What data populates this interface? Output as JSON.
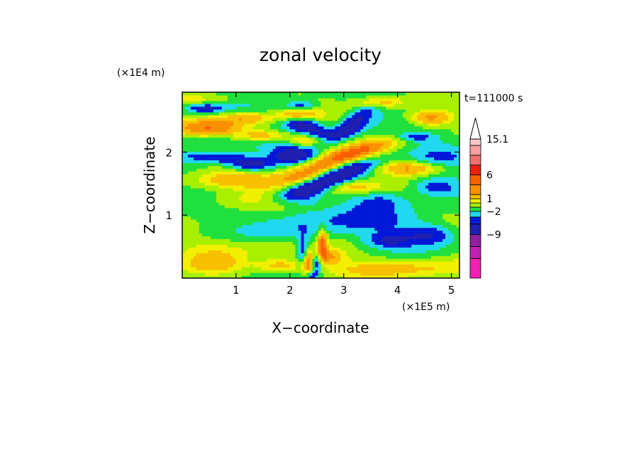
{
  "chart_data": {
    "type": "heatmap",
    "title": "zonal velocity",
    "xlabel": "X−coordinate",
    "ylabel": "Z−coordinate",
    "x_scale_label": "(×1E5 m)",
    "y_scale_label": "(×1E4 m)",
    "time_label": "t=111000 s",
    "xlim": [
      0,
      5.15
    ],
    "ylim": [
      0,
      2.95
    ],
    "x_ticks": [
      {
        "value": 1,
        "label": "1"
      },
      {
        "value": 2,
        "label": "2"
      },
      {
        "value": 3,
        "label": "3"
      },
      {
        "value": 4,
        "label": "4"
      },
      {
        "value": 5,
        "label": "5"
      }
    ],
    "y_ticks": [
      {
        "value": 1,
        "label": "1"
      },
      {
        "value": 2,
        "label": "2"
      }
    ],
    "colorbar": {
      "max_value": 15.1,
      "levels": [
        {
          "label": "",
          "color": "#f020b0"
        },
        {
          "label": "",
          "color": "#c020b0"
        },
        {
          "label": "−9",
          "color": "#9020a0"
        },
        {
          "label": "",
          "color": "#2020b0"
        },
        {
          "label": "",
          "color": "#0018d8"
        },
        {
          "label": "−2",
          "color": "#20d8f0"
        },
        {
          "label": "",
          "color": "#20e040"
        },
        {
          "label": "",
          "color": "#a8f000"
        },
        {
          "label": "1",
          "color": "#f0f000"
        },
        {
          "label": "",
          "color": "#f8c000"
        },
        {
          "label": "",
          "color": "#f89000"
        },
        {
          "label": "6",
          "color": "#f86000"
        },
        {
          "label": "",
          "color": "#e82010"
        },
        {
          "label": "",
          "color": "#f07070"
        },
        {
          "label": "",
          "color": "#f8a0a0"
        },
        {
          "label": "15.1",
          "color": "#f8c8c8"
        }
      ]
    },
    "features": [
      {
        "x": 2.45,
        "z": 1.45,
        "value": -4,
        "sx": 0.55,
        "sz": 0.09,
        "tilt": 0.25
      },
      {
        "x": 3.1,
        "z": 1.75,
        "value": -4,
        "sx": 0.45,
        "sz": 0.08,
        "tilt": 0.2
      },
      {
        "x": 2.1,
        "z": 1.95,
        "value": -4,
        "sx": 0.3,
        "sz": 0.09,
        "tilt": 0
      },
      {
        "x": 0.85,
        "z": 1.9,
        "value": -3,
        "sx": 0.6,
        "sz": 0.07,
        "tilt": -0.05
      },
      {
        "x": 1.3,
        "z": 1.78,
        "value": -3,
        "sx": 0.28,
        "sz": 0.07,
        "tilt": 0
      },
      {
        "x": 2.2,
        "z": 2.45,
        "value": -4,
        "sx": 0.22,
        "sz": 0.08,
        "tilt": 0
      },
      {
        "x": 2.5,
        "z": 2.3,
        "value": -3,
        "sx": 0.2,
        "sz": 0.08,
        "tilt": 0
      },
      {
        "x": 3.25,
        "z": 2.55,
        "value": -3,
        "sx": 0.28,
        "sz": 0.1,
        "tilt": 0.4
      },
      {
        "x": 3.0,
        "z": 2.3,
        "value": -3,
        "sx": 0.3,
        "sz": 0.08,
        "tilt": 0.3
      },
      {
        "x": 0.4,
        "z": 2.7,
        "value": -3,
        "sx": 0.25,
        "sz": 0.05,
        "tilt": 0
      },
      {
        "x": 2.2,
        "z": 2.75,
        "value": -2.5,
        "sx": 0.2,
        "sz": 0.05,
        "tilt": 0
      },
      {
        "x": 4.3,
        "z": 2.25,
        "value": -2.5,
        "sx": 0.25,
        "sz": 0.05,
        "tilt": 0
      },
      {
        "x": 4.7,
        "z": 1.45,
        "value": -3,
        "sx": 0.3,
        "sz": 0.1,
        "tilt": 0
      },
      {
        "x": 4.6,
        "z": 0.7,
        "value": -3,
        "sx": 0.35,
        "sz": 0.12,
        "tilt": 0
      },
      {
        "x": 3.8,
        "z": 0.6,
        "value": -2.5,
        "sx": 0.3,
        "sz": 0.08,
        "tilt": 0
      },
      {
        "x": 2.3,
        "z": 0.45,
        "value": -5,
        "sx": 0.1,
        "sz": 0.16,
        "tilt": 0
      },
      {
        "x": 2.5,
        "z": 0.25,
        "value": -4,
        "sx": 0.08,
        "sz": 0.12,
        "tilt": 0
      },
      {
        "x": 2.4,
        "z": 0.05,
        "value": -4,
        "sx": 0.07,
        "sz": 0.06,
        "tilt": 0
      },
      {
        "x": 2.25,
        "z": 1.25,
        "value": -2,
        "sx": 0.25,
        "sz": 0.1,
        "tilt": 0
      },
      {
        "x": 3.7,
        "z": 1.25,
        "value": -2,
        "sx": 0.4,
        "sz": 0.12,
        "tilt": 0
      },
      {
        "x": 2.1,
        "z": 0.85,
        "value": -1.5,
        "sx": 0.5,
        "sz": 0.2,
        "tilt": 0
      },
      {
        "x": 3.45,
        "z": 0.9,
        "value": -1.5,
        "sx": 0.8,
        "sz": 0.18,
        "tilt": 0
      },
      {
        "x": 4.7,
        "z": 1.9,
        "value": -1.5,
        "sx": 0.4,
        "sz": 0.2,
        "tilt": 0
      },
      {
        "x": 1.8,
        "z": 2.2,
        "value": -1.5,
        "sx": 0.4,
        "sz": 0.08,
        "tilt": 0
      },
      {
        "x": 0.5,
        "z": 2.2,
        "value": -1.5,
        "sx": 0.5,
        "sz": 0.08,
        "tilt": 0
      },
      {
        "x": 1.55,
        "z": 2.25,
        "value": 4,
        "sx": 0.35,
        "sz": 0.07,
        "tilt": 0
      },
      {
        "x": 0.5,
        "z": 2.4,
        "value": 4,
        "sx": 0.45,
        "sz": 0.1,
        "tilt": 0
      },
      {
        "x": 3.0,
        "z": 1.95,
        "value": 5,
        "sx": 0.65,
        "sz": 0.09,
        "tilt": 0.25
      },
      {
        "x": 2.4,
        "z": 1.65,
        "value": 4,
        "sx": 0.45,
        "sz": 0.08,
        "tilt": 0.2
      },
      {
        "x": 2.3,
        "z": 2.2,
        "value": 4,
        "sx": 0.25,
        "sz": 0.07,
        "tilt": 0
      },
      {
        "x": 2.15,
        "z": 2.6,
        "value": 3,
        "sx": 0.25,
        "sz": 0.06,
        "tilt": 0
      },
      {
        "x": 4.6,
        "z": 2.55,
        "value": 4,
        "sx": 0.3,
        "sz": 0.09,
        "tilt": 0
      },
      {
        "x": 1.2,
        "z": 2.55,
        "value": 3,
        "sx": 0.35,
        "sz": 0.07,
        "tilt": 0
      },
      {
        "x": 3.7,
        "z": 2.8,
        "value": 3,
        "sx": 0.3,
        "sz": 0.06,
        "tilt": 0
      },
      {
        "x": 4.3,
        "z": 1.75,
        "value": 4,
        "sx": 0.45,
        "sz": 0.08,
        "tilt": 0
      },
      {
        "x": 3.15,
        "z": 1.45,
        "value": 3,
        "sx": 0.4,
        "sz": 0.08,
        "tilt": 0
      },
      {
        "x": 1.0,
        "z": 1.55,
        "value": 2.5,
        "sx": 0.6,
        "sz": 0.1,
        "tilt": 0
      },
      {
        "x": 1.8,
        "z": 0.2,
        "value": 2.5,
        "sx": 0.3,
        "sz": 0.08,
        "tilt": 0
      },
      {
        "x": 0.6,
        "z": 0.25,
        "value": 2,
        "sx": 0.4,
        "sz": 0.12,
        "tilt": 0
      },
      {
        "x": 2.35,
        "z": 0.3,
        "value": 6,
        "sx": 0.07,
        "sz": 0.2,
        "tilt": 0
      },
      {
        "x": 2.6,
        "z": 0.55,
        "value": 5,
        "sx": 0.06,
        "sz": 0.18,
        "tilt": 0
      },
      {
        "x": 2.7,
        "z": 0.35,
        "value": 3,
        "sx": 0.2,
        "sz": 0.08,
        "tilt": 0
      },
      {
        "x": 1.0,
        "z": 0.5,
        "value": 1.5,
        "sx": 0.8,
        "sz": 0.12,
        "tilt": 0
      },
      {
        "x": 3.4,
        "z": 0.15,
        "value": 1.5,
        "sx": 1.2,
        "sz": 0.1,
        "tilt": 0
      },
      {
        "x": 4.5,
        "z": 0.2,
        "value": 1.5,
        "sx": 0.8,
        "sz": 0.12,
        "tilt": 0
      },
      {
        "x": 1.3,
        "z": 1.25,
        "value": 1.5,
        "sx": 0.8,
        "sz": 0.1,
        "tilt": 0
      },
      {
        "x": 0.4,
        "z": 2.85,
        "value": 1.5,
        "sx": 0.5,
        "sz": 0.06,
        "tilt": 0
      }
    ],
    "background_value": -0.2
  }
}
